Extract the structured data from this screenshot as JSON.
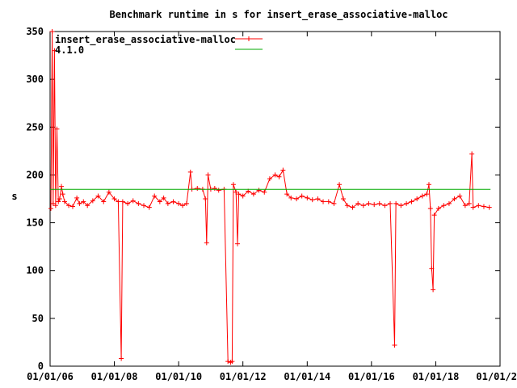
{
  "chart_data": {
    "type": "line",
    "title": "Benchmark runtime in s for insert_erase_associative-malloc",
    "xlabel": "",
    "ylabel": "s",
    "ylim": [
      0,
      350
    ],
    "xlim": [
      "2006-01-01",
      "2020-01-01"
    ],
    "y_ticks": [
      "0",
      "50",
      "100",
      "150",
      "200",
      "250",
      "300",
      "350"
    ],
    "x_ticks": [
      {
        "date": "2006-01-01",
        "label": "01/01/06"
      },
      {
        "date": "2008-01-01",
        "label": "01/01/08"
      },
      {
        "date": "2010-01-01",
        "label": "01/01/10"
      },
      {
        "date": "2012-01-01",
        "label": "01/01/12"
      },
      {
        "date": "2014-01-01",
        "label": "01/01/14"
      },
      {
        "date": "2016-01-01",
        "label": "01/01/16"
      },
      {
        "date": "2018-01-01",
        "label": "01/01/18"
      },
      {
        "date": "2020-01-01",
        "label": "01/01/2"
      }
    ],
    "grid": false,
    "legend_position": "top-left",
    "series": [
      {
        "name": "insert_erase_associative-malloc",
        "color": "#ff0000",
        "marker": "plus",
        "points": [
          [
            "2006-01-10",
            165
          ],
          [
            "2006-01-25",
            350
          ],
          [
            "2006-02-05",
            170
          ],
          [
            "2006-02-20",
            330
          ],
          [
            "2006-03-05",
            168
          ],
          [
            "2006-03-20",
            248
          ],
          [
            "2006-04-05",
            172
          ],
          [
            "2006-04-20",
            175
          ],
          [
            "2006-05-10",
            188
          ],
          [
            "2006-05-25",
            180
          ],
          [
            "2006-06-15",
            172
          ],
          [
            "2006-08-01",
            168
          ],
          [
            "2006-09-15",
            167
          ],
          [
            "2006-11-01",
            176
          ],
          [
            "2006-12-01",
            170
          ],
          [
            "2007-01-15",
            172
          ],
          [
            "2007-03-01",
            168
          ],
          [
            "2007-05-01",
            173
          ],
          [
            "2007-07-01",
            178
          ],
          [
            "2007-09-01",
            172
          ],
          [
            "2007-11-01",
            182
          ],
          [
            "2008-01-01",
            175
          ],
          [
            "2008-02-15",
            172
          ],
          [
            "2008-03-20",
            8
          ],
          [
            "2008-04-05",
            172
          ],
          [
            "2008-06-01",
            170
          ],
          [
            "2008-08-01",
            173
          ],
          [
            "2008-10-01",
            170
          ],
          [
            "2008-12-01",
            168
          ],
          [
            "2009-02-01",
            166
          ],
          [
            "2009-04-01",
            178
          ],
          [
            "2009-06-01",
            172
          ],
          [
            "2009-07-15",
            176
          ],
          [
            "2009-09-01",
            170
          ],
          [
            "2009-11-01",
            172
          ],
          [
            "2010-01-01",
            170
          ],
          [
            "2010-02-15",
            168
          ],
          [
            "2010-04-01",
            170
          ],
          [
            "2010-05-15",
            203
          ],
          [
            "2010-06-01",
            185
          ],
          [
            "2010-08-01",
            186
          ],
          [
            "2010-10-01",
            185
          ],
          [
            "2010-11-01",
            175
          ],
          [
            "2010-11-15",
            129
          ],
          [
            "2010-12-01",
            200
          ],
          [
            "2011-01-01",
            185
          ],
          [
            "2011-02-15",
            186
          ],
          [
            "2011-04-01",
            184
          ],
          [
            "2011-06-01",
            185
          ],
          [
            "2011-07-15",
            5
          ],
          [
            "2011-08-15",
            4
          ],
          [
            "2011-09-01",
            5
          ],
          [
            "2011-09-15",
            190
          ],
          [
            "2011-10-15",
            182
          ],
          [
            "2011-11-01",
            128
          ],
          [
            "2011-11-15",
            180
          ],
          [
            "2012-01-01",
            178
          ],
          [
            "2012-03-01",
            183
          ],
          [
            "2012-05-01",
            180
          ],
          [
            "2012-07-01",
            184
          ],
          [
            "2012-09-01",
            182
          ],
          [
            "2012-11-01",
            196
          ],
          [
            "2013-01-01",
            200
          ],
          [
            "2013-02-15",
            198
          ],
          [
            "2013-04-01",
            205
          ],
          [
            "2013-05-15",
            180
          ],
          [
            "2013-07-01",
            176
          ],
          [
            "2013-09-01",
            175
          ],
          [
            "2013-11-01",
            178
          ],
          [
            "2014-01-01",
            176
          ],
          [
            "2014-03-01",
            174
          ],
          [
            "2014-05-01",
            175
          ],
          [
            "2014-07-01",
            172
          ],
          [
            "2014-09-01",
            172
          ],
          [
            "2014-11-01",
            170
          ],
          [
            "2015-01-01",
            190
          ],
          [
            "2015-02-15",
            175
          ],
          [
            "2015-04-01",
            168
          ],
          [
            "2015-06-01",
            166
          ],
          [
            "2015-08-01",
            170
          ],
          [
            "2015-10-01",
            168
          ],
          [
            "2015-12-01",
            170
          ],
          [
            "2016-02-01",
            169
          ],
          [
            "2016-04-01",
            170
          ],
          [
            "2016-06-01",
            168
          ],
          [
            "2016-08-01",
            170
          ],
          [
            "2016-09-20",
            22
          ],
          [
            "2016-10-05",
            170
          ],
          [
            "2016-12-01",
            168
          ],
          [
            "2017-02-01",
            170
          ],
          [
            "2017-04-01",
            172
          ],
          [
            "2017-06-01",
            175
          ],
          [
            "2017-08-01",
            178
          ],
          [
            "2017-09-20",
            180
          ],
          [
            "2017-10-15",
            190
          ],
          [
            "2017-11-01",
            165
          ],
          [
            "2017-11-15",
            102
          ],
          [
            "2017-12-01",
            80
          ],
          [
            "2017-12-15",
            158
          ],
          [
            "2018-02-01",
            165
          ],
          [
            "2018-04-01",
            168
          ],
          [
            "2018-06-01",
            170
          ],
          [
            "2018-08-01",
            175
          ],
          [
            "2018-10-01",
            178
          ],
          [
            "2018-12-01",
            168
          ],
          [
            "2019-01-15",
            170
          ],
          [
            "2019-02-15",
            222
          ],
          [
            "2019-03-01",
            166
          ],
          [
            "2019-05-01",
            168
          ],
          [
            "2019-07-01",
            167
          ],
          [
            "2019-09-01",
            166
          ]
        ]
      },
      {
        "name": "4.1.0",
        "color": "#00aa00",
        "marker": "none",
        "points": [
          [
            "2006-01-01",
            185
          ],
          [
            "2019-09-15",
            185
          ]
        ]
      }
    ]
  }
}
